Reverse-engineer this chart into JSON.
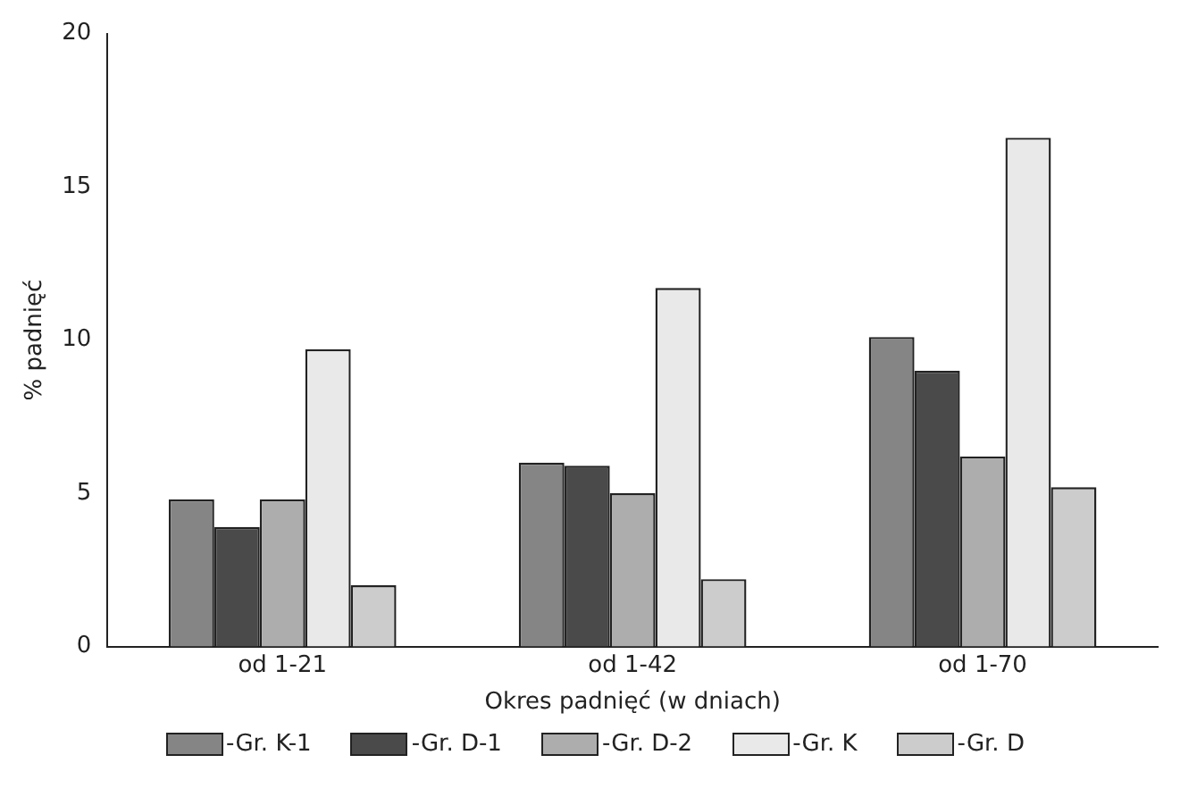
{
  "chart_data": {
    "type": "bar",
    "xlabel": "Okres padnięć (w dniach)",
    "ylabel": "% padnięć",
    "categories": [
      "od 1-21",
      "od 1-42",
      "od 1-70"
    ],
    "series": [
      {
        "name": "-Gr. K-1",
        "color": "#858585",
        "values": [
          4.8,
          6.0,
          10.1
        ]
      },
      {
        "name": "-Gr. D-1",
        "color": "#4a4a4a",
        "values": [
          3.9,
          5.9,
          9.0
        ]
      },
      {
        "name": "-Gr. D-2",
        "color": "#adadad",
        "values": [
          4.8,
          5.0,
          6.2
        ]
      },
      {
        "name": "-Gr. K",
        "color": "#e9e9e9",
        "values": [
          9.7,
          11.7,
          16.6
        ]
      },
      {
        "name": "-Gr. D",
        "color": "#cccccc",
        "values": [
          2.0,
          2.2,
          5.2
        ]
      }
    ],
    "ylim": [
      0,
      20
    ],
    "yticks": [
      0,
      5,
      10,
      15,
      20
    ],
    "grid": false,
    "legend": "bottom"
  }
}
